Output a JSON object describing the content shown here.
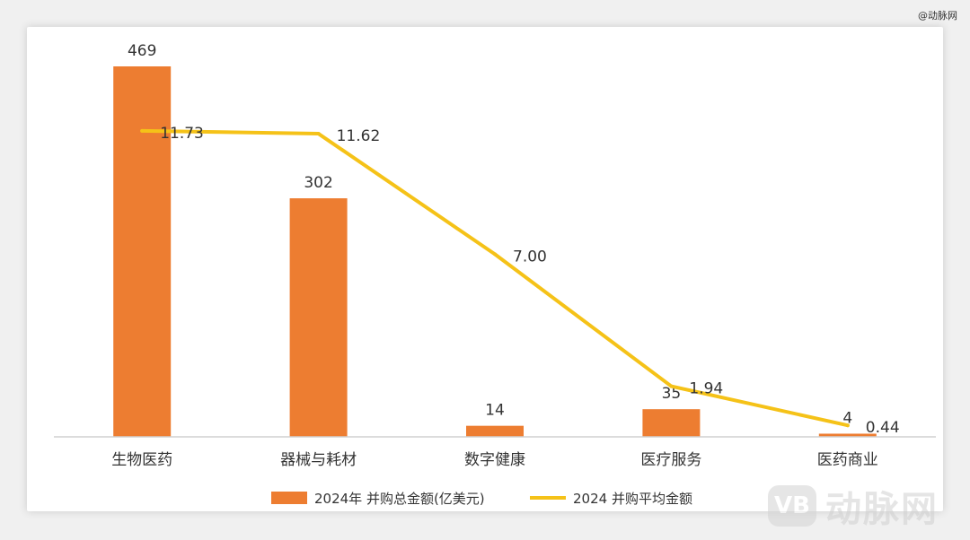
{
  "watermark_top": "@动脉网",
  "brand": {
    "logo": "VB",
    "name": "动脉网"
  },
  "colors": {
    "bar": "#ED7D31",
    "line": "#F5C218",
    "axis": "#d0d0d0",
    "text": "#333333"
  },
  "chart_data": {
    "type": "bar",
    "title": "",
    "xlabel": "",
    "ylabel": "",
    "categories": [
      "生物医药",
      "器械与耗材",
      "数字健康",
      "医疗服务",
      "医药商业"
    ],
    "bar_ylim": [
      0,
      469
    ],
    "line_ylim": [
      0,
      14.2
    ],
    "legend_position": "bottom",
    "grid": false,
    "series": [
      {
        "name": "2024年 并购总金额(亿美元)",
        "type": "bar",
        "values": [
          469,
          302,
          14,
          35,
          4
        ],
        "labels": [
          "469",
          "302",
          "14",
          "35",
          "4"
        ]
      },
      {
        "name": "2024 并购平均金额",
        "type": "line",
        "values": [
          11.73,
          11.62,
          7.0,
          1.94,
          0.44
        ],
        "labels": [
          "11.73",
          "11.62",
          "7.00",
          "1.94",
          "0.44"
        ]
      }
    ]
  }
}
